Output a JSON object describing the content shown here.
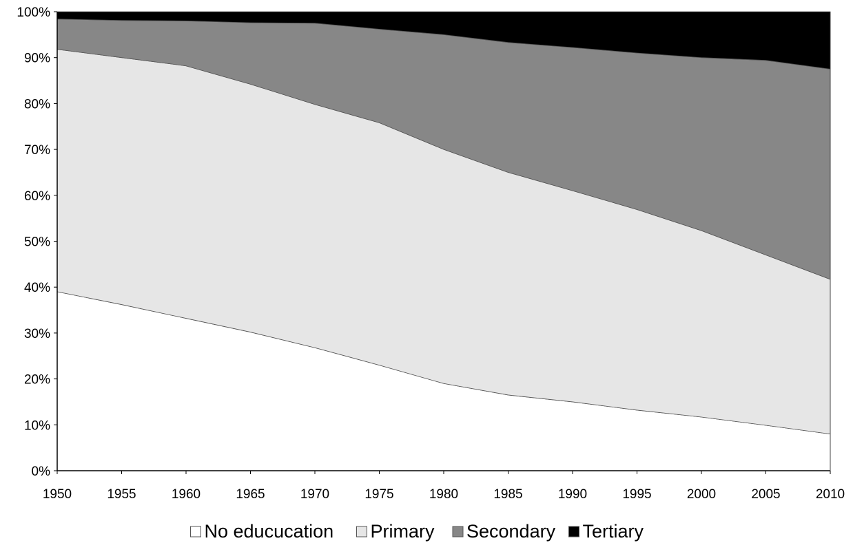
{
  "chart_data": {
    "type": "area",
    "stacked": true,
    "percent": true,
    "title": "",
    "xlabel": "",
    "ylabel": "",
    "x": [
      1950,
      1955,
      1960,
      1965,
      1970,
      1975,
      1980,
      1985,
      1990,
      1995,
      2000,
      2005,
      2010
    ],
    "x_tick_labels": [
      "1950",
      "1955",
      "1960",
      "1965",
      "1970",
      "1975",
      "1980",
      "1985",
      "1990",
      "1995",
      "2000",
      "2005",
      "2010"
    ],
    "y_tick_labels": [
      "0%",
      "10%",
      "20%",
      "30%",
      "40%",
      "50%",
      "60%",
      "70%",
      "80%",
      "90%",
      "100%"
    ],
    "ylim": [
      0,
      100
    ],
    "grid": false,
    "legend_position": "bottom",
    "series": [
      {
        "name": "No educucation",
        "color": "#ffffff",
        "values": [
          39.0,
          36.2,
          33.2,
          30.2,
          26.8,
          23.0,
          19.0,
          16.5,
          15.0,
          13.2,
          11.7,
          9.9,
          8.0
        ]
      },
      {
        "name": "Primary",
        "color": "#e6e6e6",
        "values": [
          52.8,
          53.8,
          55.0,
          54.0,
          53.0,
          52.8,
          51.0,
          48.5,
          46.0,
          43.7,
          40.6,
          37.1,
          33.7
        ]
      },
      {
        "name": "Secondary",
        "color": "#878787",
        "values": [
          6.6,
          8.1,
          9.8,
          13.4,
          17.7,
          20.4,
          25.0,
          28.3,
          31.2,
          34.1,
          37.7,
          42.4,
          45.8
        ]
      },
      {
        "name": "Tertiary",
        "color": "#000000",
        "values": [
          1.6,
          1.9,
          2.0,
          2.4,
          2.5,
          3.8,
          5.0,
          6.7,
          7.8,
          9.0,
          10.0,
          10.6,
          12.5
        ]
      }
    ]
  }
}
